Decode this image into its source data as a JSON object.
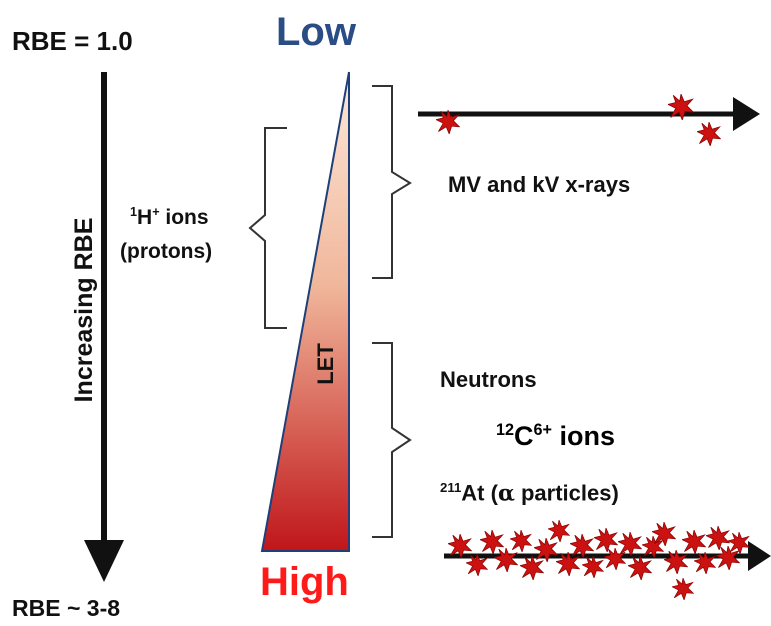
{
  "labels": {
    "rbe_top": "RBE = 1.0",
    "rbe_bottom": "RBE ~ 3-8",
    "increasing_rbe": "Increasing RBE",
    "low": "Low",
    "high": "High",
    "let": "LET",
    "protons_line1_sup": "1",
    "protons_line1_base": "H",
    "protons_line1_sup2": "+",
    "protons_line1_rest": " ions",
    "protons_line2": "(protons)",
    "xrays": "MV and kV x-rays",
    "neutrons": "Neutrons",
    "carbon_sup": "12",
    "carbon_base": "C",
    "carbon_sup2": "6+",
    "carbon_rest": " ions",
    "astatine_sup": "211",
    "astatine_base": "At (",
    "astatine_alpha": "α",
    "astatine_rest": " particles)"
  },
  "colors": {
    "low_label": "#2a4d86",
    "high_label": "#ff1a1a",
    "gradient_top": "#fbe3d2",
    "gradient_bottom": "#c41a1a",
    "damage_star": "#cc1111"
  }
}
